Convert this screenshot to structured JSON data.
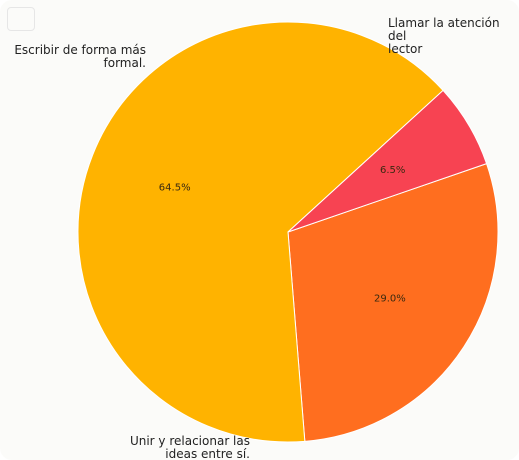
{
  "chart_data": {
    "type": "pie",
    "categories": [
      "Llamar la atención del lector",
      "Unir y relacionar las ideas entre sí.",
      "Escribir de forma más formal."
    ],
    "values": [
      29.0,
      64.5,
      6.5
    ],
    "percent_labels": [
      "29.0%",
      "64.5%",
      "6.5%"
    ],
    "colors": [
      "#ff6e1f",
      "#ffb300",
      "#f74352"
    ],
    "start": "top-right, clockwise",
    "legend": "none (labels outside slices)"
  },
  "labels": {
    "slice0_line1": "Llamar la atención del",
    "slice0_line2": "lector",
    "slice1_line1": "Unir y relacionar las",
    "slice1_line2": "ideas entre sí.",
    "slice2_line1": "Escribir de forma más",
    "slice2_line2": "formal."
  }
}
